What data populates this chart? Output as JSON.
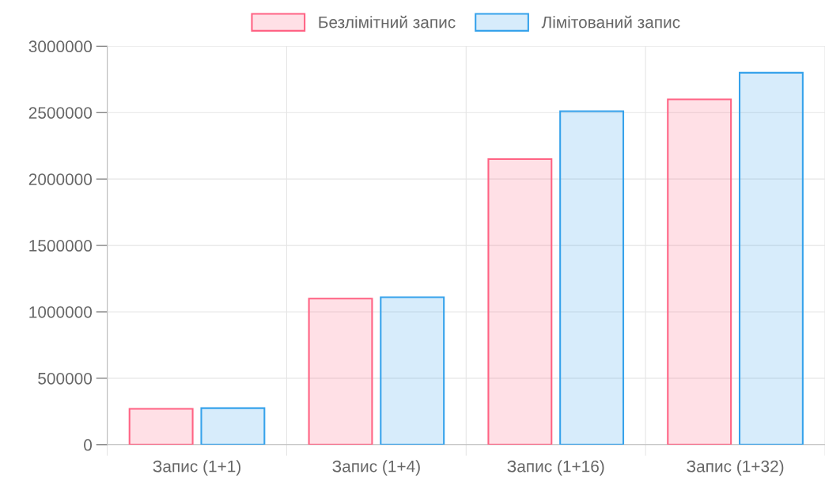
{
  "chart_data": {
    "type": "bar",
    "categories": [
      "Запис (1+1)",
      "Запис (1+4)",
      "Запис (1+16)",
      "Запис (1+32)"
    ],
    "series": [
      {
        "name": "Безлімітний запис",
        "color": "#ff6384",
        "values": [
          270000,
          1100000,
          2150000,
          2600000
        ]
      },
      {
        "name": "Лімітований запис",
        "color": "#36a2eb",
        "values": [
          275000,
          1110000,
          2510000,
          2800000
        ]
      }
    ],
    "ylim": [
      0,
      3000000
    ],
    "yticks": [
      0,
      500000,
      1000000,
      1500000,
      2000000,
      2500000,
      3000000
    ],
    "grid": true,
    "legend": "top"
  }
}
